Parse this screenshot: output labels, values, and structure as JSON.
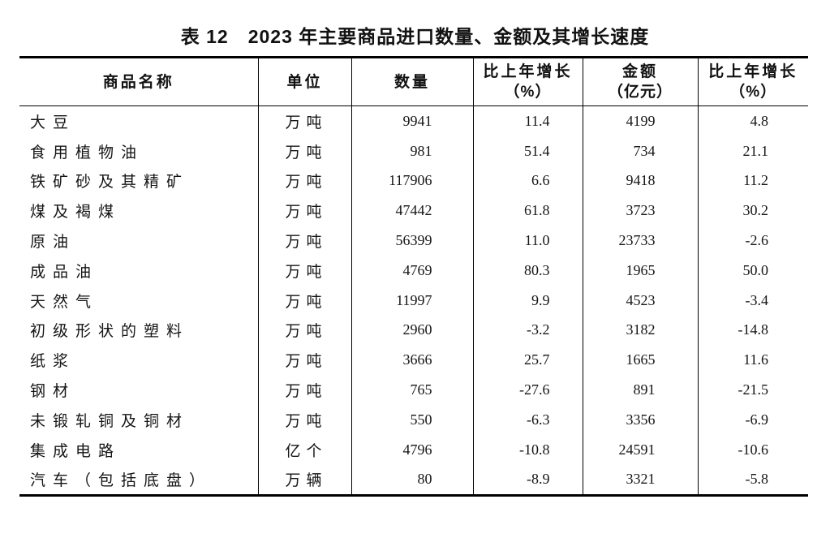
{
  "page": {
    "background_color": "#ffffff",
    "text_color": "#151515",
    "rule_color": "#000000"
  },
  "title": "表 12　2023 年主要商品进口数量、金额及其增长速度",
  "table": {
    "headers": [
      {
        "label": "商品名称"
      },
      {
        "label": "单位"
      },
      {
        "label": "数量"
      },
      {
        "label": "比上年增长",
        "sub": "（%）"
      },
      {
        "label": "金额",
        "sub": "（亿元）"
      },
      {
        "label": "比上年增长",
        "sub": "（%）"
      }
    ],
    "rows": [
      {
        "name": "大豆",
        "unit": "万吨",
        "quantity": "9941",
        "quantity_growth": "11.4",
        "amount": "4199",
        "amount_growth": "4.8"
      },
      {
        "name": "食用植物油",
        "unit": "万吨",
        "quantity": "981",
        "quantity_growth": "51.4",
        "amount": "734",
        "amount_growth": "21.1"
      },
      {
        "name": "铁矿砂及其精矿",
        "unit": "万吨",
        "quantity": "117906",
        "quantity_growth": "6.6",
        "amount": "9418",
        "amount_growth": "11.2"
      },
      {
        "name": "煤及褐煤",
        "unit": "万吨",
        "quantity": "47442",
        "quantity_growth": "61.8",
        "amount": "3723",
        "amount_growth": "30.2"
      },
      {
        "name": "原油",
        "unit": "万吨",
        "quantity": "56399",
        "quantity_growth": "11.0",
        "amount": "23733",
        "amount_growth": "-2.6"
      },
      {
        "name": "成品油",
        "unit": "万吨",
        "quantity": "4769",
        "quantity_growth": "80.3",
        "amount": "1965",
        "amount_growth": "50.0"
      },
      {
        "name": "天然气",
        "unit": "万吨",
        "quantity": "11997",
        "quantity_growth": "9.9",
        "amount": "4523",
        "amount_growth": "-3.4"
      },
      {
        "name": "初级形状的塑料",
        "unit": "万吨",
        "quantity": "2960",
        "quantity_growth": "-3.2",
        "amount": "3182",
        "amount_growth": "-14.8"
      },
      {
        "name": "纸浆",
        "unit": "万吨",
        "quantity": "3666",
        "quantity_growth": "25.7",
        "amount": "1665",
        "amount_growth": "11.6"
      },
      {
        "name": "钢材",
        "unit": "万吨",
        "quantity": "765",
        "quantity_growth": "-27.6",
        "amount": "891",
        "amount_growth": "-21.5"
      },
      {
        "name": "未锻轧铜及铜材",
        "unit": "万吨",
        "quantity": "550",
        "quantity_growth": "-6.3",
        "amount": "3356",
        "amount_growth": "-6.9"
      },
      {
        "name": "集成电路",
        "unit": "亿个",
        "quantity": "4796",
        "quantity_growth": "-10.8",
        "amount": "24591",
        "amount_growth": "-10.6"
      },
      {
        "name": "汽车（包括底盘）",
        "unit": "万辆",
        "quantity": "80",
        "quantity_growth": "-8.9",
        "amount": "3321",
        "amount_growth": "-5.8"
      }
    ]
  }
}
